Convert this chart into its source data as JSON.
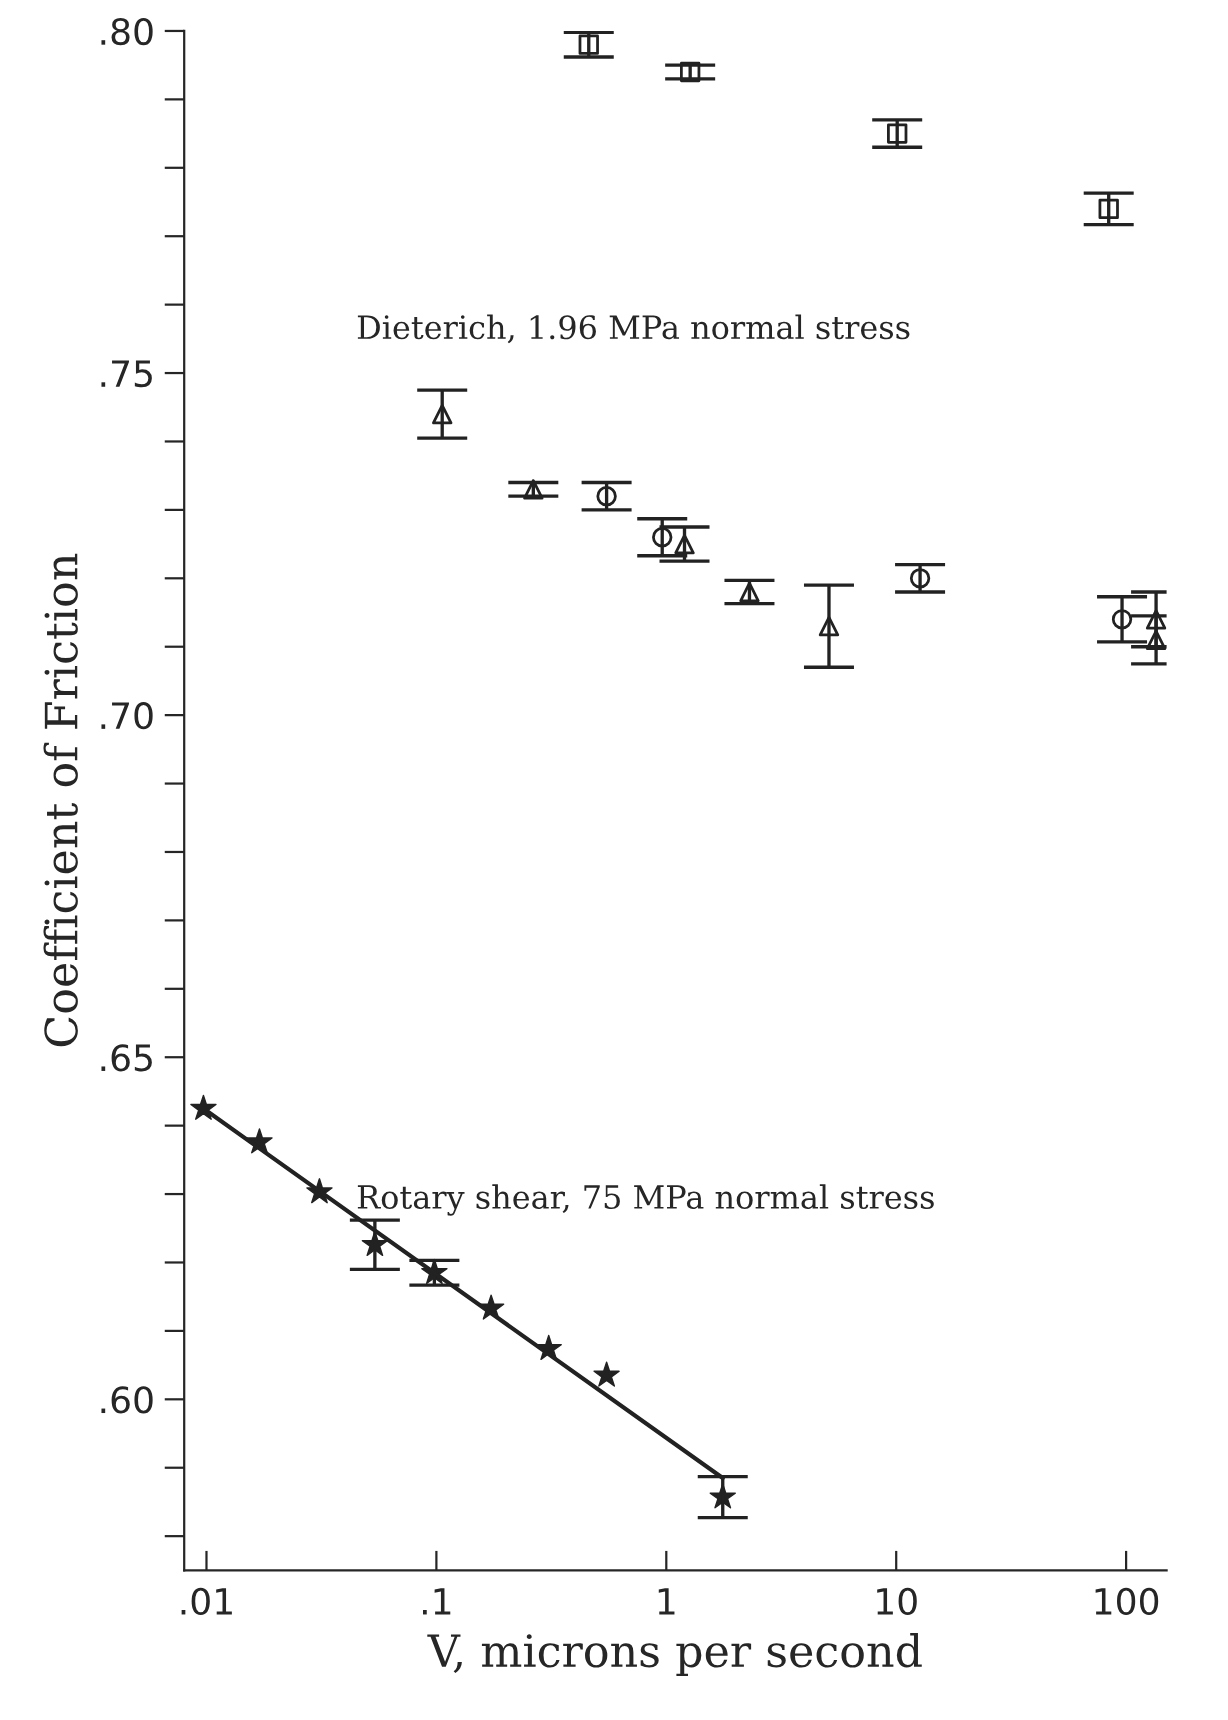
{
  "chart_data": {
    "type": "scatter",
    "xlabel": "V, microns per second",
    "ylabel": "Coefficient of Friction",
    "log": "x",
    "grid": false,
    "legend": false,
    "xlim": [
      0.008,
      150
    ],
    "ylim": [
      0.575,
      0.8
    ],
    "xticks": [
      {
        "value": 0.01,
        "label": ".01"
      },
      {
        "value": 0.1,
        "label": ".1"
      },
      1,
      10,
      100
    ],
    "yticks": [
      {
        "value": 0.58,
        "label": null
      },
      {
        "value": 0.59,
        "label": null
      },
      {
        "value": 0.6,
        "label": ".60"
      },
      {
        "value": 0.61,
        "label": null
      },
      {
        "value": 0.62,
        "label": null
      },
      {
        "value": 0.63,
        "label": null
      },
      {
        "value": 0.64,
        "label": null
      },
      {
        "value": 0.65,
        "label": ".65"
      },
      {
        "value": 0.66,
        "label": null
      },
      {
        "value": 0.67,
        "label": null
      },
      {
        "value": 0.68,
        "label": null
      },
      {
        "value": 0.69,
        "label": null
      },
      {
        "value": 0.7,
        "label": ".70"
      },
      {
        "value": 0.71,
        "label": null
      },
      {
        "value": 0.72,
        "label": null
      },
      {
        "value": 0.73,
        "label": null
      },
      {
        "value": 0.74,
        "label": null
      },
      {
        "value": 0.75,
        "label": ".75"
      },
      {
        "value": 0.76,
        "label": null
      },
      {
        "value": 0.77,
        "label": null
      },
      {
        "value": 0.78,
        "label": null
      },
      {
        "value": 0.79,
        "label": null
      },
      {
        "value": 0.8,
        "label": ".80"
      }
    ],
    "annotations": [
      "Dieterich, 1.96 MPa normal stress",
      "Rotary shear, 75 MPa normal stress"
    ],
    "series": [
      {
        "marker": "square",
        "color": "#222222",
        "x": [
          0.46,
          1.27,
          10.1,
          84
        ],
        "values": [
          0.798,
          0.794,
          0.785,
          0.774
        ],
        "errors": [
          0.0018,
          0.001,
          0.002,
          0.0023
        ]
      },
      {
        "marker": "triangle",
        "color": "#222222",
        "x": [
          0.106,
          0.264,
          1.2,
          2.3,
          5.1,
          135,
          135
        ],
        "values": [
          0.744,
          0.733,
          0.725,
          0.718,
          0.713,
          0.714,
          0.711
        ],
        "errors": [
          0.0035,
          0.001,
          0.0025,
          0.0017,
          0.006,
          0.004,
          0.0035
        ]
      },
      {
        "marker": "circle",
        "color": "#222222",
        "x": [
          0.55,
          0.96,
          12.7,
          96
        ],
        "values": [
          0.732,
          0.726,
          0.72,
          0.714
        ],
        "errors": [
          0.002,
          0.0027,
          0.002,
          0.0033
        ]
      },
      {
        "marker": "star",
        "color": "#222222",
        "x": [
          0.0097,
          0.017,
          0.031,
          0.054,
          0.098,
          0.173,
          0.308,
          0.55,
          1.76
        ],
        "values": [
          0.6425,
          0.6376,
          0.6303,
          0.6226,
          0.6185,
          0.6133,
          0.6074,
          0.6035,
          0.5857
        ],
        "errors": [
          null,
          null,
          null,
          0.0036,
          0.0018,
          null,
          null,
          null,
          0.003
        ]
      },
      {
        "type": "line",
        "marker": "none",
        "line_style": "solid",
        "color": "#222222",
        "x": [
          0.0097,
          1.76
        ],
        "values": [
          0.6425,
          0.5885
        ]
      }
    ]
  }
}
